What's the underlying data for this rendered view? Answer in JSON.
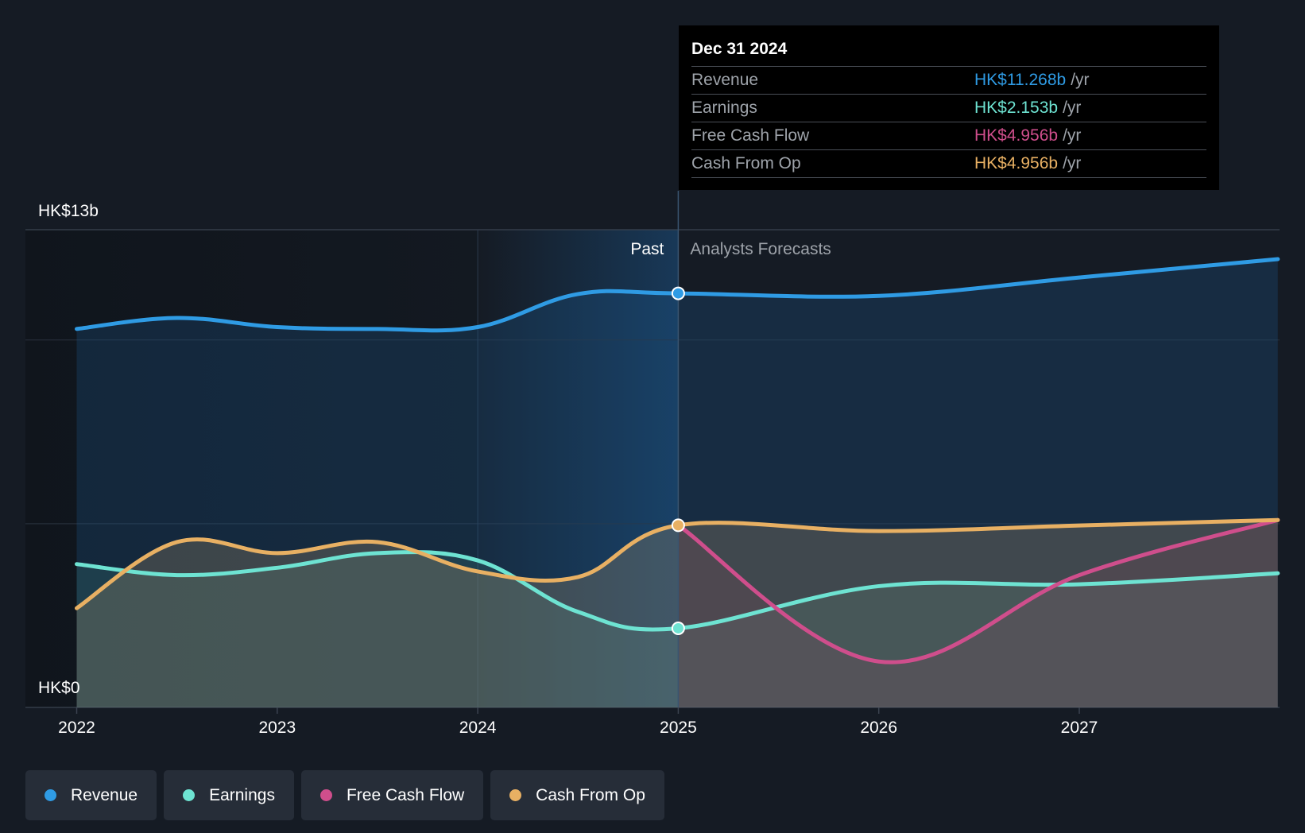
{
  "colors": {
    "revenue": "#2f9be4",
    "earnings": "#6ee3d2",
    "fcf": "#cf4e8c",
    "cfo": "#e8b063",
    "background": "#151b24"
  },
  "chart_data": {
    "type": "area",
    "y_axis": {
      "min": 0,
      "max": 13,
      "unit": "HK$ billions",
      "top_label": "HK$13b",
      "bottom_label": "HK$0"
    },
    "x_axis": {
      "ticks": [
        "2022",
        "2023",
        "2024",
        "2025",
        "2026",
        "2027"
      ]
    },
    "divider_date": 2025.0,
    "past_label": "Past",
    "forecast_label": "Analysts Forecasts",
    "series": [
      {
        "name": "Revenue",
        "key": "revenue",
        "points": [
          [
            2022.0,
            10.3
          ],
          [
            2022.5,
            10.6
          ],
          [
            2023.0,
            10.35
          ],
          [
            2023.5,
            10.3
          ],
          [
            2024.0,
            10.35
          ],
          [
            2024.5,
            11.25
          ],
          [
            2025.0,
            11.268
          ],
          [
            2026.0,
            11.2
          ],
          [
            2027.0,
            11.7
          ],
          [
            2027.99,
            12.2
          ]
        ]
      },
      {
        "name": "Earnings",
        "key": "earnings",
        "points": [
          [
            2022.0,
            3.9
          ],
          [
            2022.5,
            3.6
          ],
          [
            2023.0,
            3.8
          ],
          [
            2023.5,
            4.2
          ],
          [
            2024.0,
            4.0
          ],
          [
            2024.5,
            2.6
          ],
          [
            2025.0,
            2.153
          ],
          [
            2026.0,
            3.3
          ],
          [
            2027.0,
            3.35
          ],
          [
            2027.99,
            3.65
          ]
        ]
      },
      {
        "name": "Free Cash Flow",
        "key": "fcf",
        "points": [
          [
            2025.0,
            4.956
          ],
          [
            2026.0,
            1.25
          ],
          [
            2027.0,
            3.6
          ],
          [
            2027.99,
            5.1
          ]
        ]
      },
      {
        "name": "Cash From Op",
        "key": "cfo",
        "points": [
          [
            2022.0,
            2.7
          ],
          [
            2022.5,
            4.5
          ],
          [
            2023.0,
            4.2
          ],
          [
            2023.5,
            4.5
          ],
          [
            2024.0,
            3.7
          ],
          [
            2024.5,
            3.55
          ],
          [
            2025.0,
            4.956
          ],
          [
            2026.0,
            4.8
          ],
          [
            2027.0,
            4.95
          ],
          [
            2027.99,
            5.1
          ]
        ]
      }
    ]
  },
  "tooltip": {
    "date": "Dec 31 2024",
    "rows": [
      {
        "label": "Revenue",
        "value": "HK$11.268b",
        "unit": "/yr",
        "key": "revenue"
      },
      {
        "label": "Earnings",
        "value": "HK$2.153b",
        "unit": "/yr",
        "key": "earnings"
      },
      {
        "label": "Free Cash Flow",
        "value": "HK$4.956b",
        "unit": "/yr",
        "key": "fcf"
      },
      {
        "label": "Cash From Op",
        "value": "HK$4.956b",
        "unit": "/yr",
        "key": "cfo"
      }
    ]
  },
  "legend": [
    {
      "label": "Revenue",
      "key": "revenue"
    },
    {
      "label": "Earnings",
      "key": "earnings"
    },
    {
      "label": "Free Cash Flow",
      "key": "fcf"
    },
    {
      "label": "Cash From Op",
      "key": "cfo"
    }
  ]
}
